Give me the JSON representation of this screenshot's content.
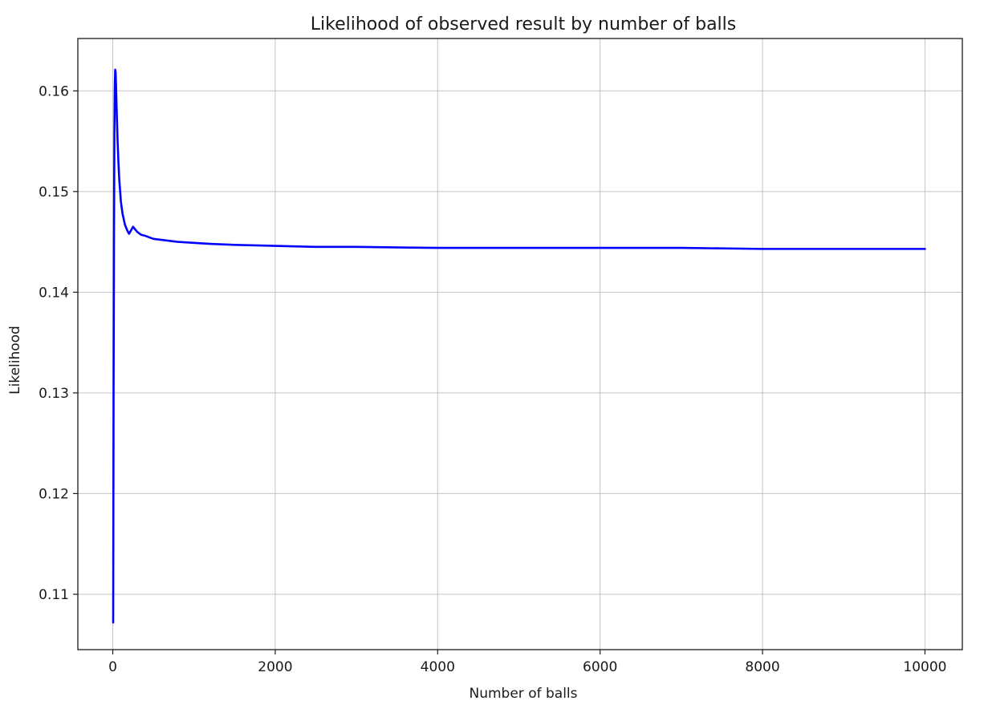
{
  "chart_data": {
    "type": "line",
    "title": "Likelihood of observed result by number of balls",
    "xlabel": "Number of balls",
    "ylabel": "Likelihood",
    "xlim": [
      -430,
      10460
    ],
    "ylim": [
      0.1045,
      0.1652
    ],
    "xticks": [
      0,
      2000,
      4000,
      6000,
      8000,
      10000
    ],
    "xtick_labels": [
      "0",
      "2000",
      "4000",
      "6000",
      "8000",
      "10000"
    ],
    "yticks": [
      0.11,
      0.12,
      0.13,
      0.14,
      0.15,
      0.16
    ],
    "ytick_labels": [
      "0.11",
      "0.12",
      "0.13",
      "0.14",
      "0.15",
      "0.16"
    ],
    "grid": true,
    "series": [
      {
        "color": "#0000ff",
        "x": [
          5,
          10,
          15,
          20,
          25,
          30,
          35,
          40,
          50,
          60,
          70,
          80,
          100,
          120,
          150,
          180,
          200,
          250,
          300,
          350,
          400,
          500,
          600,
          700,
          800,
          1000,
          1200,
          1500,
          2000,
          2500,
          3000,
          4000,
          5000,
          6000,
          7000,
          8000,
          9000,
          10000
        ],
        "y": [
          0.1072,
          0.1305,
          0.1455,
          0.1558,
          0.1605,
          0.1621,
          0.1618,
          0.1605,
          0.1575,
          0.1549,
          0.1528,
          0.1512,
          0.149,
          0.1478,
          0.1467,
          0.1461,
          0.1458,
          0.1465,
          0.146,
          0.1457,
          0.1456,
          0.1453,
          0.1452,
          0.1451,
          0.145,
          0.1449,
          0.1448,
          0.1447,
          0.1446,
          0.1445,
          0.1445,
          0.1444,
          0.1444,
          0.1444,
          0.1444,
          0.1443,
          0.1443,
          0.1443
        ]
      }
    ]
  }
}
